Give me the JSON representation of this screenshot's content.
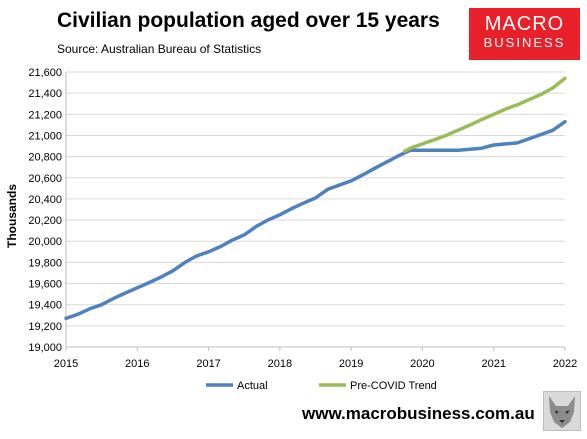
{
  "header": {
    "title": "Civilian population aged over 15 years",
    "source": "Source: Australian Bureau of Statistics"
  },
  "logo": {
    "line1": "MACRO",
    "line2": "BUSINESS",
    "color": "#e8202a"
  },
  "footer": {
    "url": "www.macrobusiness.com.au"
  },
  "chart_data": {
    "type": "line",
    "ylabel": "Thousands",
    "xlim": [
      2015,
      2022
    ],
    "ylim": [
      19000,
      21600
    ],
    "x_ticks": [
      "2015",
      "2016",
      "2017",
      "2018",
      "2019",
      "2020",
      "2021",
      "2022"
    ],
    "y_ticks": [
      "19,000",
      "19,200",
      "19,400",
      "19,600",
      "19,800",
      "20,000",
      "20,200",
      "20,400",
      "20,600",
      "20,800",
      "21,000",
      "21,200",
      "21,400",
      "21,600"
    ],
    "grid": "horizontal",
    "legend_position": "bottom",
    "series": [
      {
        "name": "Actual",
        "color": "#4f81bd",
        "points": [
          [
            2015.0,
            19270
          ],
          [
            2015.17,
            19310
          ],
          [
            2015.33,
            19360
          ],
          [
            2015.5,
            19400
          ],
          [
            2015.67,
            19460
          ],
          [
            2015.83,
            19510
          ],
          [
            2016.0,
            19560
          ],
          [
            2016.17,
            19610
          ],
          [
            2016.33,
            19660
          ],
          [
            2016.5,
            19720
          ],
          [
            2016.67,
            19800
          ],
          [
            2016.83,
            19860
          ],
          [
            2017.0,
            19900
          ],
          [
            2017.17,
            19950
          ],
          [
            2017.33,
            20010
          ],
          [
            2017.5,
            20060
          ],
          [
            2017.67,
            20140
          ],
          [
            2017.83,
            20200
          ],
          [
            2018.0,
            20250
          ],
          [
            2018.17,
            20310
          ],
          [
            2018.33,
            20360
          ],
          [
            2018.5,
            20410
          ],
          [
            2018.67,
            20490
          ],
          [
            2018.83,
            20530
          ],
          [
            2019.0,
            20570
          ],
          [
            2019.17,
            20630
          ],
          [
            2019.33,
            20690
          ],
          [
            2019.5,
            20750
          ],
          [
            2019.67,
            20810
          ],
          [
            2019.83,
            20860
          ],
          [
            2020.0,
            20860
          ],
          [
            2020.17,
            20860
          ],
          [
            2020.33,
            20860
          ],
          [
            2020.5,
            20860
          ],
          [
            2020.67,
            20870
          ],
          [
            2020.83,
            20880
          ],
          [
            2021.0,
            20910
          ],
          [
            2021.17,
            20920
          ],
          [
            2021.33,
            20930
          ],
          [
            2021.5,
            20970
          ],
          [
            2021.67,
            21010
          ],
          [
            2021.83,
            21050
          ],
          [
            2022.0,
            21130
          ]
        ]
      },
      {
        "name": "Pre-COVID Trend",
        "color": "#9bbb59",
        "points": [
          [
            2019.75,
            20850
          ],
          [
            2019.83,
            20880
          ],
          [
            2020.0,
            20920
          ],
          [
            2020.17,
            20960
          ],
          [
            2020.33,
            21000
          ],
          [
            2020.5,
            21050
          ],
          [
            2020.67,
            21100
          ],
          [
            2020.83,
            21150
          ],
          [
            2021.0,
            21200
          ],
          [
            2021.17,
            21250
          ],
          [
            2021.33,
            21290
          ],
          [
            2021.5,
            21340
          ],
          [
            2021.67,
            21390
          ],
          [
            2021.83,
            21450
          ],
          [
            2022.0,
            21540
          ]
        ]
      }
    ]
  }
}
